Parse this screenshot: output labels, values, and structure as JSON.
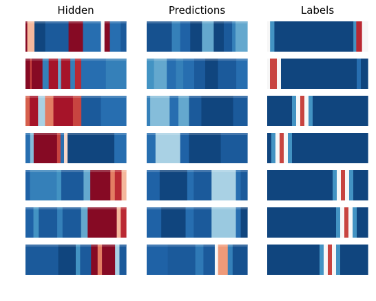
{
  "chart_data": {
    "type": "heatmap",
    "colormap": "RdBu_r",
    "axes": "off",
    "columns": [
      "Hidden",
      "Predictions",
      "Labels"
    ],
    "rows": 7,
    "note_values": "cell values in [0,1]; 1 = dark blue, 0 = dark red, 0.5 = white",
    "panels": {
      "Hidden": [
        {
          "bands": [
            [
              0.05,
              1
            ],
            [
              0.4,
              4
            ],
            [
              0.95,
              6
            ],
            [
              0.9,
              13
            ],
            [
              0.05,
              8
            ],
            [
              0.85,
              10
            ],
            [
              0.5,
              2
            ],
            [
              0.05,
              3
            ],
            [
              0.85,
              6
            ],
            [
              0.9,
              3
            ]
          ]
        },
        {
          "bands": [
            [
              0.05,
              3
            ],
            [
              0.2,
              1
            ],
            [
              0.05,
              7
            ],
            [
              0.8,
              4
            ],
            [
              0.1,
              6
            ],
            [
              0.7,
              2
            ],
            [
              0.1,
              6
            ],
            [
              0.8,
              3
            ],
            [
              0.15,
              4
            ],
            [
              0.85,
              16
            ],
            [
              0.8,
              13
            ]
          ]
        },
        {
          "bands": [
            [
              0.25,
              3
            ],
            [
              0.1,
              6
            ],
            [
              0.6,
              5
            ],
            [
              0.3,
              6
            ],
            [
              0.1,
              14
            ],
            [
              0.2,
              6
            ],
            [
              0.9,
              14
            ],
            [
              0.85,
              18
            ]
          ]
        },
        {
          "bands": [
            [
              0.85,
              4
            ],
            [
              0.65,
              3
            ],
            [
              0.05,
              20
            ],
            [
              0.2,
              3
            ],
            [
              0.85,
              3
            ],
            [
              0.45,
              3
            ],
            [
              0.95,
              40
            ],
            [
              0.85,
              10
            ]
          ]
        },
        {
          "bands": [
            [
              0.88,
              4
            ],
            [
              0.8,
              24
            ],
            [
              0.75,
              4
            ],
            [
              0.9,
              20
            ],
            [
              0.7,
              6
            ],
            [
              0.05,
              18
            ],
            [
              0.3,
              4
            ],
            [
              0.15,
              6
            ],
            [
              0.4,
              4
            ]
          ]
        },
        {
          "bands": [
            [
              0.88,
              6
            ],
            [
              0.75,
              4
            ],
            [
              0.9,
              14
            ],
            [
              0.8,
              4
            ],
            [
              0.9,
              14
            ],
            [
              0.7,
              5
            ],
            [
              0.05,
              22
            ],
            [
              0.4,
              3
            ],
            [
              0.15,
              4
            ]
          ]
        },
        {
          "bands": [
            [
              0.9,
              30
            ],
            [
              0.95,
              16
            ],
            [
              0.75,
              4
            ],
            [
              0.9,
              10
            ],
            [
              0.05,
              6
            ],
            [
              0.3,
              4
            ],
            [
              0.05,
              12
            ],
            [
              0.6,
              4
            ],
            [
              0.9,
              6
            ]
          ]
        }
      ],
      "Predictions": [
        {
          "bands": [
            [
              0.92,
              30
            ],
            [
              0.8,
              10
            ],
            [
              0.88,
              12
            ],
            [
              0.95,
              14
            ],
            [
              0.7,
              14
            ],
            [
              0.95,
              12
            ],
            [
              0.9,
              10
            ],
            [
              0.8,
              4
            ],
            [
              0.7,
              14
            ]
          ]
        },
        {
          "bands": [
            [
              0.75,
              8
            ],
            [
              0.7,
              14
            ],
            [
              0.85,
              10
            ],
            [
              0.8,
              8
            ],
            [
              0.85,
              12
            ],
            [
              0.9,
              12
            ],
            [
              0.95,
              14
            ],
            [
              0.9,
              20
            ],
            [
              0.85,
              12
            ]
          ]
        },
        {
          "bands": [
            [
              0.8,
              4
            ],
            [
              0.65,
              22
            ],
            [
              0.85,
              10
            ],
            [
              0.7,
              12
            ],
            [
              0.9,
              14
            ],
            [
              0.95,
              36
            ],
            [
              0.9,
              16
            ]
          ]
        },
        {
          "bands": [
            [
              0.85,
              10
            ],
            [
              0.6,
              28
            ],
            [
              0.88,
              10
            ],
            [
              0.95,
              36
            ],
            [
              0.9,
              30
            ]
          ]
        },
        {
          "bands": [
            [
              0.88,
              16
            ],
            [
              0.95,
              34
            ],
            [
              0.85,
              8
            ],
            [
              0.9,
              22
            ],
            [
              0.6,
              30
            ],
            [
              0.85,
              6
            ],
            [
              0.9,
              8
            ]
          ]
        },
        {
          "bands": [
            [
              0.88,
              18
            ],
            [
              0.95,
              30
            ],
            [
              0.85,
              10
            ],
            [
              0.9,
              22
            ],
            [
              0.62,
              30
            ],
            [
              0.85,
              6
            ],
            [
              0.95,
              8
            ]
          ]
        },
        {
          "bands": [
            [
              0.88,
              26
            ],
            [
              0.9,
              34
            ],
            [
              0.82,
              10
            ],
            [
              0.9,
              14
            ],
            [
              0.5,
              4
            ],
            [
              0.35,
              12
            ],
            [
              0.8,
              6
            ],
            [
              0.92,
              18
            ]
          ]
        }
      ],
      "Labels": [
        {
          "bands": [
            [
              0.5,
              4
            ],
            [
              0.75,
              6
            ],
            [
              0.95,
              110
            ],
            [
              0.75,
              4
            ],
            [
              0.15,
              8
            ],
            [
              0.5,
              8
            ]
          ]
        },
        {
          "bands": [
            [
              0.5,
              4
            ],
            [
              0.2,
              10
            ],
            [
              0.5,
              6
            ],
            [
              0.95,
              110
            ],
            [
              0.85,
              6
            ],
            [
              0.95,
              10
            ]
          ]
        },
        {
          "bands": [
            [
              0.95,
              36
            ],
            [
              0.75,
              6
            ],
            [
              0.5,
              6
            ],
            [
              0.2,
              6
            ],
            [
              0.5,
              6
            ],
            [
              0.75,
              6
            ],
            [
              0.95,
              80
            ]
          ]
        },
        {
          "bands": [
            [
              0.95,
              6
            ],
            [
              0.75,
              6
            ],
            [
              0.5,
              6
            ],
            [
              0.2,
              6
            ],
            [
              0.5,
              6
            ],
            [
              0.75,
              6
            ],
            [
              0.95,
              110
            ]
          ]
        },
        {
          "bands": [
            [
              0.95,
              95
            ],
            [
              0.75,
              6
            ],
            [
              0.5,
              6
            ],
            [
              0.2,
              6
            ],
            [
              0.5,
              6
            ],
            [
              0.75,
              6
            ],
            [
              0.95,
              21
            ]
          ]
        },
        {
          "bands": [
            [
              0.95,
              100
            ],
            [
              0.75,
              6
            ],
            [
              0.5,
              6
            ],
            [
              0.2,
              6
            ],
            [
              0.5,
              6
            ],
            [
              0.75,
              6
            ],
            [
              0.95,
              16
            ]
          ]
        },
        {
          "bands": [
            [
              0.95,
              76
            ],
            [
              0.75,
              6
            ],
            [
              0.5,
              6
            ],
            [
              0.2,
              6
            ],
            [
              0.5,
              6
            ],
            [
              0.75,
              6
            ],
            [
              0.95,
              40
            ]
          ]
        }
      ]
    }
  }
}
